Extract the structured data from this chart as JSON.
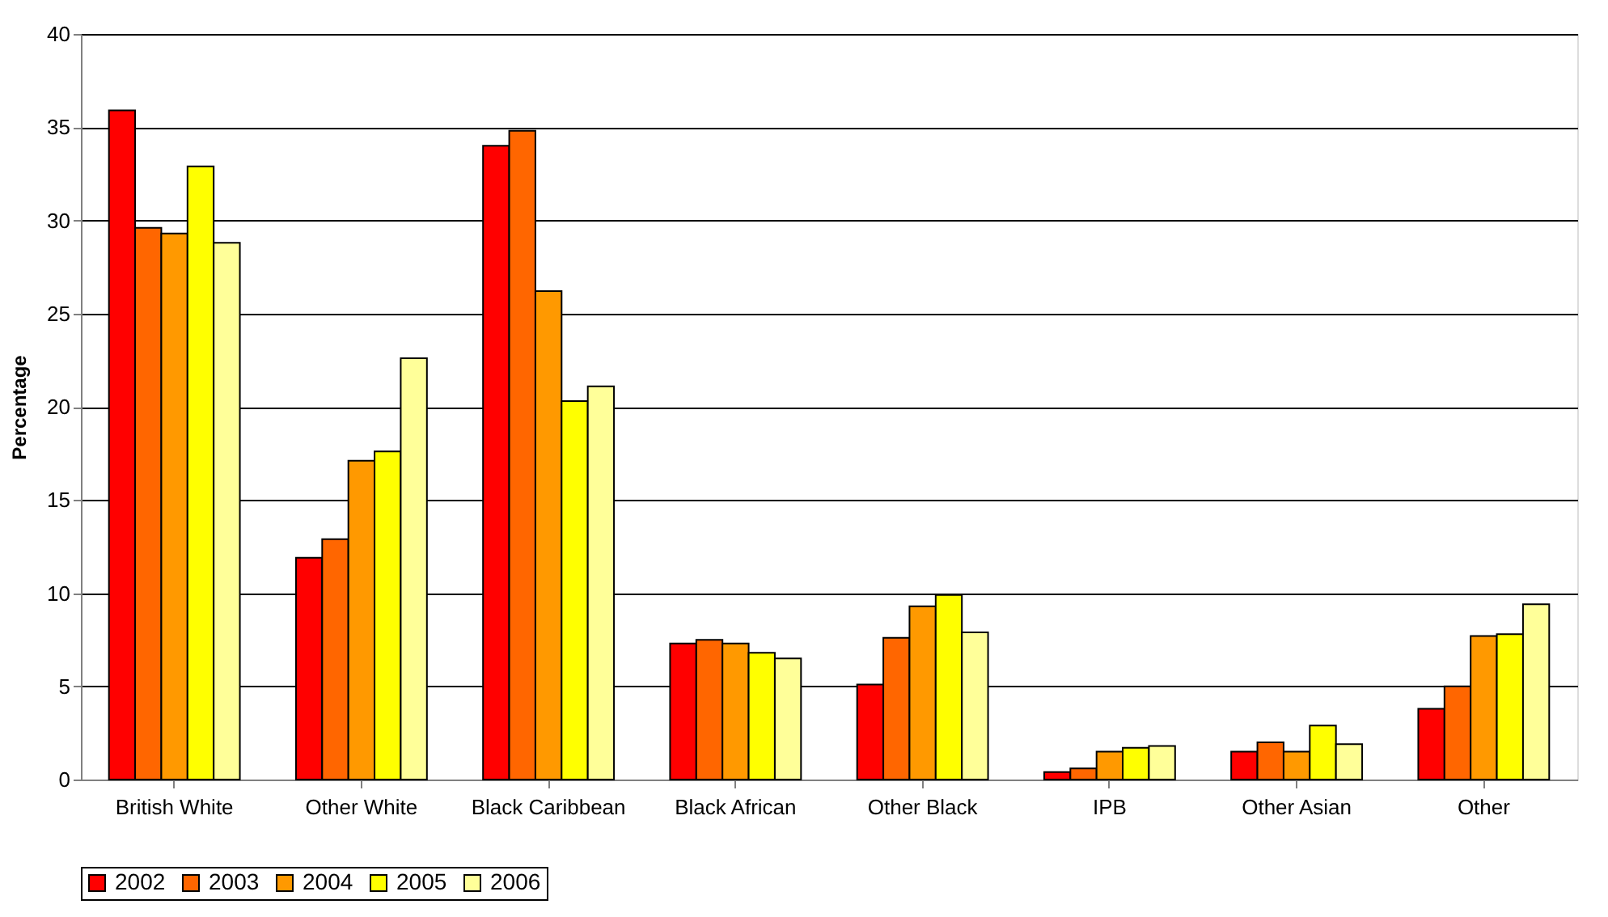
{
  "chart_data": {
    "type": "bar",
    "ylabel": "Percentage",
    "categories": [
      "British White",
      "Other White",
      "Black Caribbean",
      "Black African",
      "Other Black",
      "IPB",
      "Other Asian",
      "Other"
    ],
    "series": [
      {
        "name": "2002",
        "color": "#ff0000",
        "values": [
          35.9,
          11.9,
          34.0,
          7.3,
          5.1,
          0.4,
          1.5,
          3.8
        ]
      },
      {
        "name": "2003",
        "color": "#ff6600",
        "values": [
          29.6,
          12.9,
          34.8,
          7.5,
          7.6,
          0.6,
          2.0,
          5.0
        ]
      },
      {
        "name": "2004",
        "color": "#ff9900",
        "values": [
          29.3,
          17.1,
          26.2,
          7.3,
          9.3,
          1.5,
          1.5,
          7.7
        ]
      },
      {
        "name": "2005",
        "color": "#ffff00",
        "values": [
          32.9,
          17.6,
          20.3,
          6.8,
          9.9,
          1.7,
          2.9,
          7.8
        ]
      },
      {
        "name": "2006",
        "color": "#ffff99",
        "values": [
          28.8,
          22.6,
          21.1,
          6.5,
          7.9,
          1.8,
          1.9,
          9.4
        ]
      }
    ],
    "ylim": [
      0,
      40
    ],
    "yticks": [
      0,
      5,
      10,
      15,
      20,
      25,
      30,
      35,
      40
    ],
    "grid": "y",
    "legend": "bottom"
  }
}
